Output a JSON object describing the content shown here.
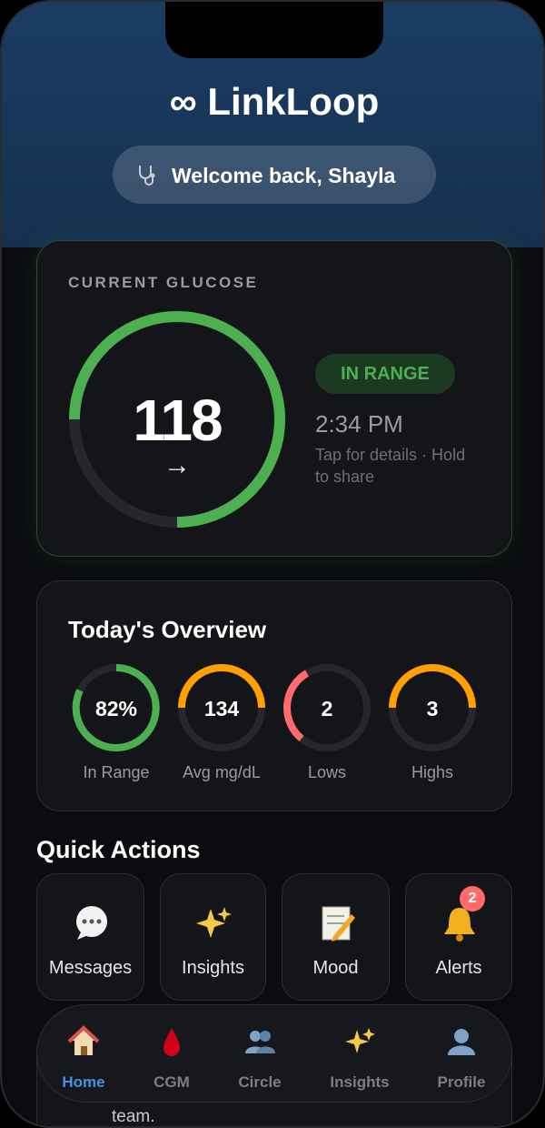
{
  "header": {
    "title": "∞ LinkLoop",
    "greeting": "Welcome back, Shayla"
  },
  "glucose": {
    "heading": "CURRENT GLUCOSE",
    "value": 118,
    "trend": "→",
    "status": "IN RANGE",
    "time": "2:34 PM",
    "hint": "Tap for details · Hold to share"
  },
  "overview": {
    "title": "Today's Overview",
    "stats": [
      {
        "value": "82%",
        "label": "In Range"
      },
      {
        "value": 134,
        "label": "Avg mg/dL"
      },
      {
        "value": 2,
        "label": "Lows"
      },
      {
        "value": 3,
        "label": "Highs"
      }
    ]
  },
  "quick_actions": {
    "title": "Quick Actions",
    "items": [
      {
        "label": "Messages"
      },
      {
        "label": "Insights"
      },
      {
        "label": "Mood"
      },
      {
        "label": "Alerts",
        "badge": 2
      }
    ]
  },
  "nav": {
    "items": [
      "Home",
      "CGM",
      "Circle",
      "Insights",
      "Profile"
    ]
  },
  "feed": {
    "snippet": "team."
  }
}
